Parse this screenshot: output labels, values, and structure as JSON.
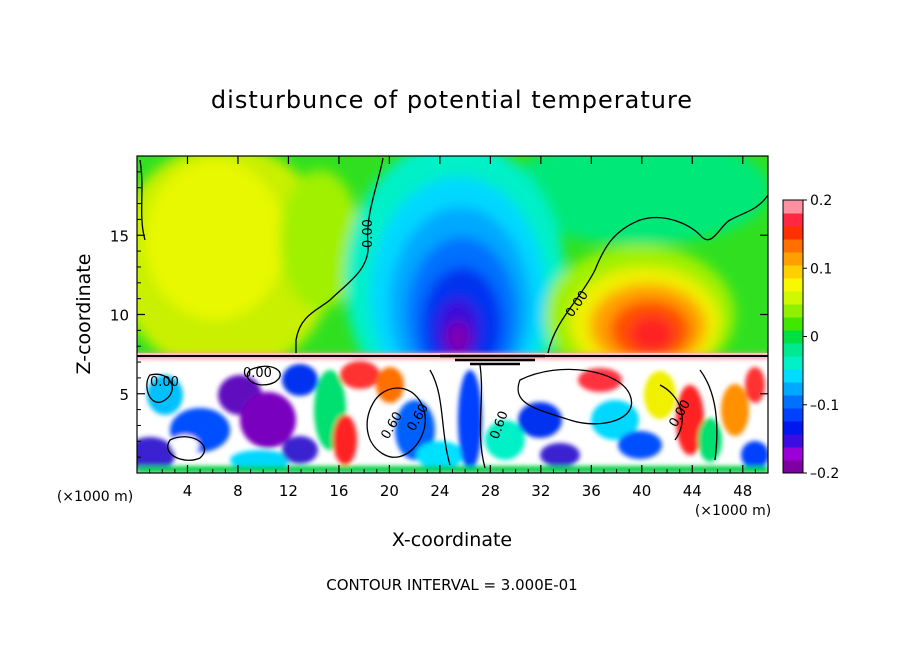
{
  "chart_data": {
    "type": "heatmap",
    "title": "disturbunce of potential temperature",
    "xlabel": "X-coordinate",
    "ylabel": "Z-coordinate",
    "x_unit_left": "(×1000 m)",
    "x_unit_right": "(×1000 m)",
    "xlim": [
      0,
      50
    ],
    "ylim": [
      0,
      20
    ],
    "x_ticks": [
      4,
      8,
      12,
      16,
      20,
      24,
      28,
      32,
      36,
      40,
      44,
      48
    ],
    "y_ticks": [
      5,
      10,
      15
    ],
    "colorbar": {
      "range": [
        -0.2,
        0.2
      ],
      "tick_values": [
        0.2,
        0.1,
        0,
        -0.1,
        -0.2
      ],
      "tick_labels": [
        "0.2",
        "0.1",
        "0",
        "–0.1",
        "–0.2"
      ],
      "colors": [
        "#7f00a0",
        "#9b00d8",
        "#3c0ce0",
        "#0018f0",
        "#0040ff",
        "#0070ff",
        "#00a8ff",
        "#00dcff",
        "#00f0c8",
        "#00e890",
        "#00e040",
        "#40e800",
        "#90f000",
        "#d0f800",
        "#f8f800",
        "#ffd000",
        "#ffa000",
        "#ff7000",
        "#ff3000",
        "#ff2840",
        "#ff90a0"
      ]
    },
    "contour_labels": [
      "0.00",
      "0.00",
      "0.00",
      "0.60",
      "0.60",
      "0.60",
      "0.00",
      "0.00"
    ],
    "contour_interval": "CONTOUR INTERVAL = 3.000E-01"
  }
}
